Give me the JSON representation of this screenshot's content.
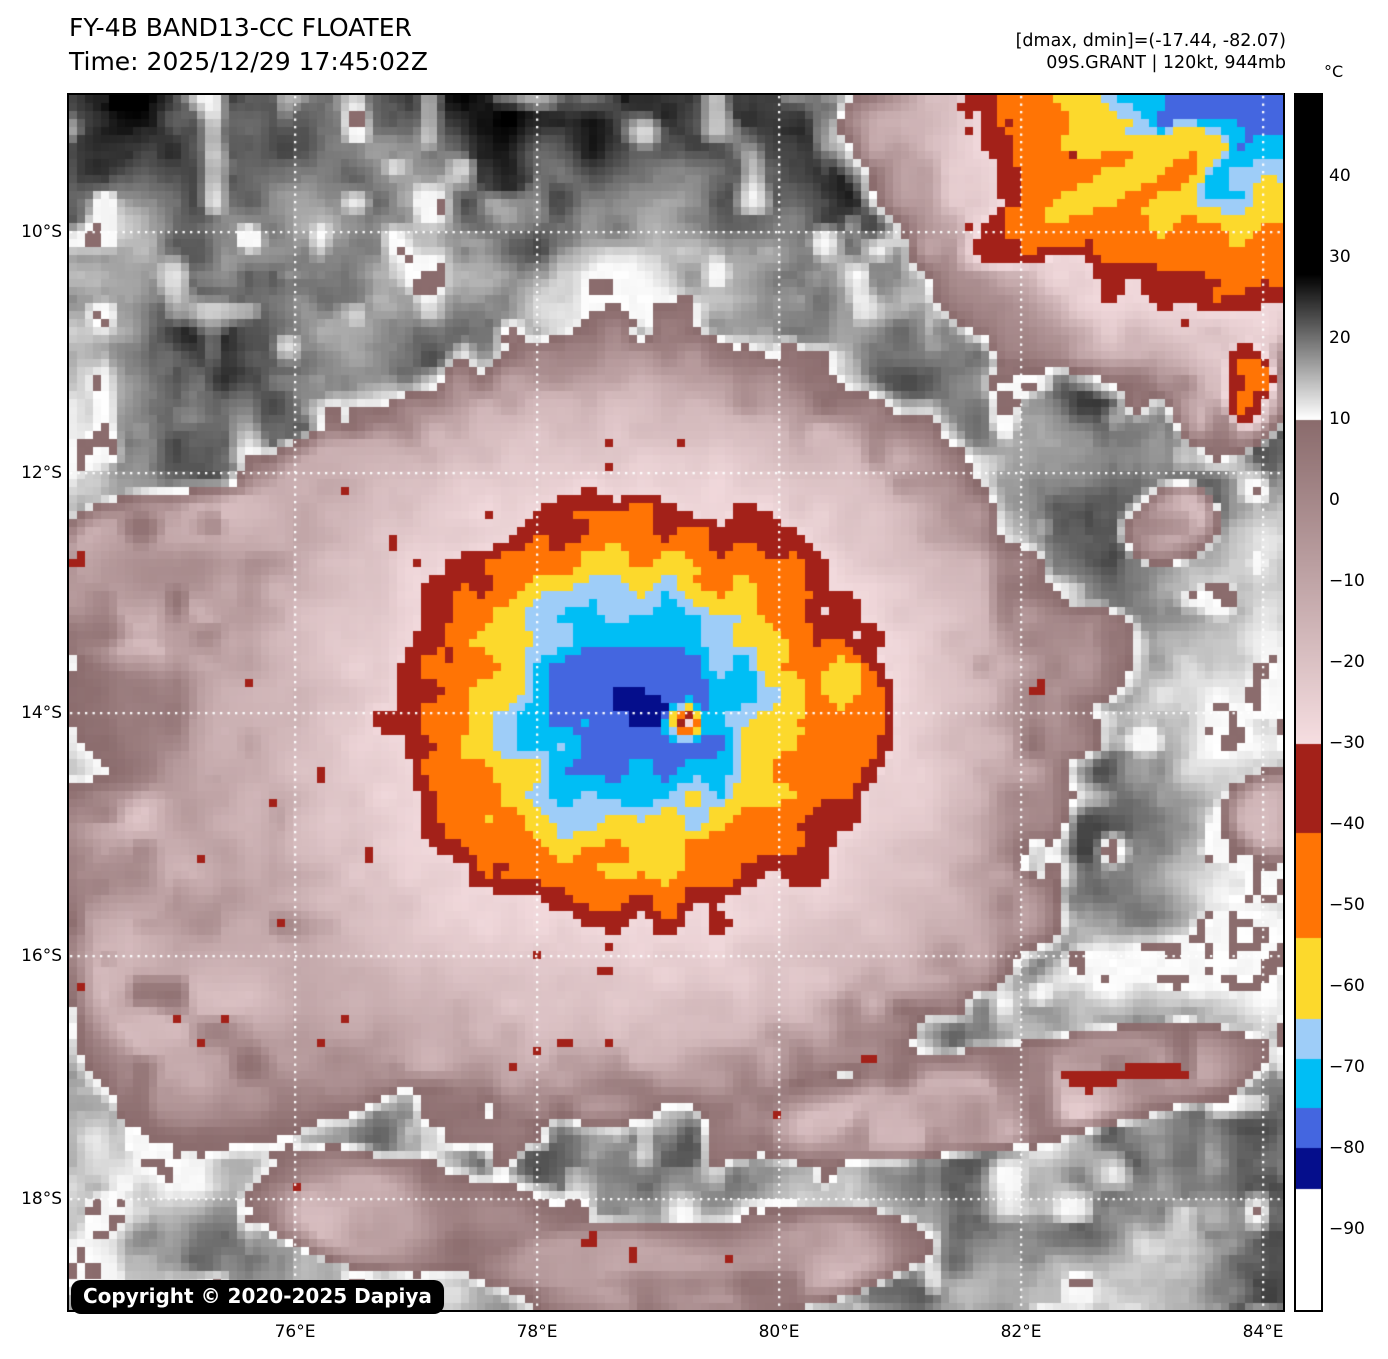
{
  "header": {
    "title": "FY-4B BAND13-CC FLOATER",
    "time": "Time: 2025/12/29 17:45:02Z",
    "range_annotation": "[dmax, dmin]=(-17.44, -82.07)",
    "storm_annotation": "09S.GRANT | 120kt, 944mb"
  },
  "storm": {
    "id": "09S",
    "name": "GRANT",
    "intensity": "120kt",
    "pressure": "944mb",
    "dmax": -17.44,
    "dmin": -82.07
  },
  "axes": {
    "lon_ticks": [
      "76°E",
      "78°E",
      "80°E",
      "82°E",
      "84°E"
    ],
    "lat_ticks": [
      "10°S",
      "12°S",
      "14°S",
      "16°S",
      "18°S"
    ]
  },
  "colorbar": {
    "unit": "°C",
    "tick_values": [
      40,
      30,
      20,
      10,
      0,
      -10,
      -20,
      -30,
      -40,
      -50,
      -60,
      -70,
      -80,
      -90
    ],
    "tick_labels": [
      "40",
      "30",
      "20",
      "10",
      "0",
      "−10",
      "−20",
      "−30",
      "−40",
      "−50",
      "−60",
      "−70",
      "−80",
      "−90"
    ],
    "top_value": 50,
    "bottom_value": -100
  },
  "palette": {
    "gray_black_at": 28,
    "gray_white_at": 10,
    "mauve_dark": "#8a6b6c",
    "mauve_light": "#f6dee1",
    "bands": [
      {
        "from": -30,
        "to": -41,
        "color": "#a32119"
      },
      {
        "from": -41,
        "to": -54,
        "color": "#ff7405"
      },
      {
        "from": -54,
        "to": -64,
        "color": "#fcd92c"
      },
      {
        "from": -64,
        "to": -69,
        "color": "#9ecdf8"
      },
      {
        "from": -69,
        "to": -75,
        "color": "#00bef5"
      },
      {
        "from": -75,
        "to": -80,
        "color": "#4466e0"
      },
      {
        "from": -80,
        "to": -85,
        "color": "#050e8c"
      },
      {
        "from": -85,
        "to": -100,
        "color": "#ffffff"
      }
    ],
    "gridline_color": "#ffffff"
  },
  "copyright": "Copyright © 2020-2025 Dapiya"
}
